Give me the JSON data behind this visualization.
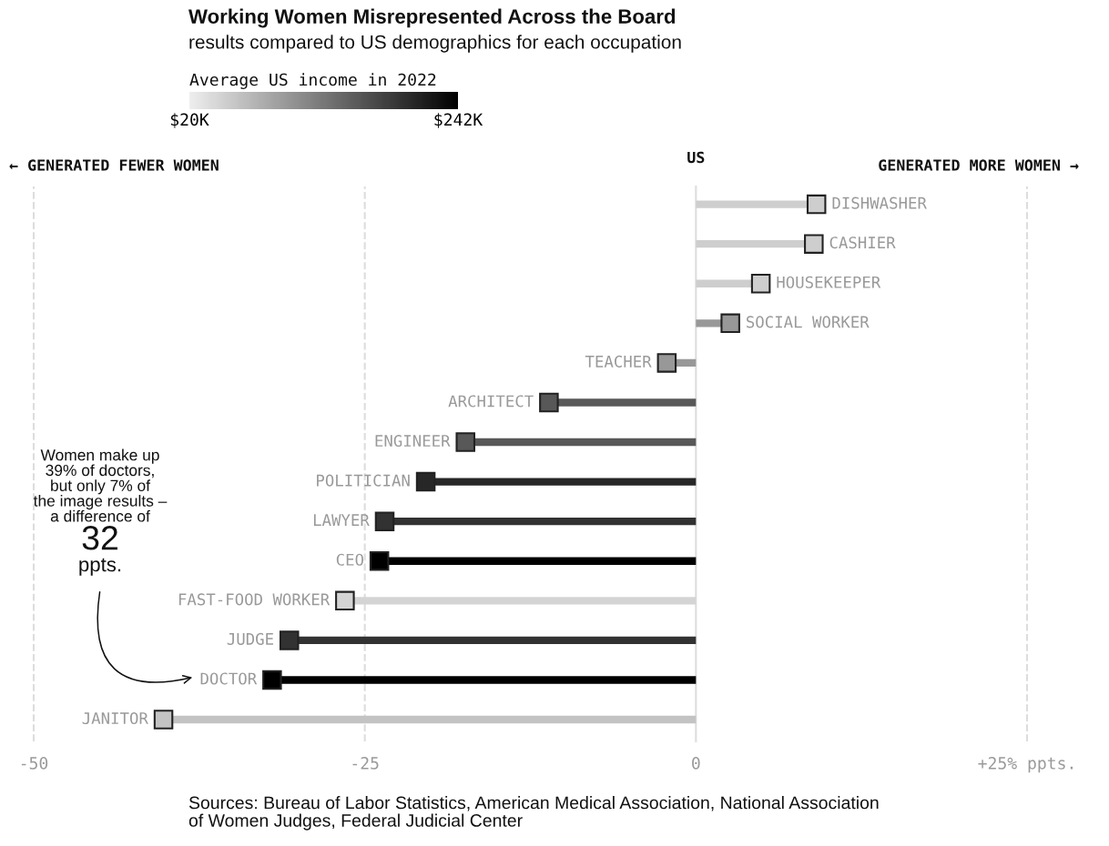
{
  "chart_data": {
    "type": "lollipop",
    "orientation": "horizontal",
    "title": "Working Women Misrepresented Across the Board",
    "subtitle": "results compared to US demographics for each occupation",
    "categories": [
      "DISHWASHER",
      "CASHIER",
      "HOUSEKEEPER",
      "SOCIAL WORKER",
      "TEACHER",
      "ARCHITECT",
      "ENGINEER",
      "POLITICIAN",
      "LAWYER",
      "CEO",
      "FAST-FOOD WORKER",
      "JUDGE",
      "DOCTOR",
      "JANITOR"
    ],
    "values": [
      9.1,
      8.9,
      4.9,
      2.6,
      -2.2,
      -11.1,
      -17.4,
      -20.4,
      -23.5,
      -23.9,
      -26.5,
      -30.7,
      -32,
      -40.2
    ],
    "cvalues": [
      50,
      50,
      50,
      100,
      100,
      160,
      160,
      205,
      195,
      242,
      45,
      195,
      242,
      60
    ],
    "clabel": "Average US income in 2022",
    "clim": [
      20,
      242
    ],
    "cticks": [
      {
        "value": 20,
        "label": "$20K"
      },
      {
        "value": 242,
        "label": "$242K"
      }
    ],
    "xlim": [
      -50,
      25
    ],
    "xticks": [
      -50,
      -25,
      0,
      {
        "value": 25,
        "label": "+25% ppts."
      }
    ],
    "marker": "square",
    "ref_lines": [
      {
        "axis": "x",
        "value": 0,
        "label": "US",
        "color": "#dddddd",
        "line_style": "solid"
      },
      {
        "axis": "x",
        "value": -50,
        "color": "#dddddd",
        "line_style": "dashed"
      },
      {
        "axis": "x",
        "value": -25,
        "color": "#dddddd",
        "line_style": "dashed"
      },
      {
        "axis": "x",
        "value": 25,
        "color": "#dddddd",
        "line_style": "dashed"
      }
    ],
    "annotations": [
      "Women make up\n39% of doctors,\nbut only 7% of\nthe image results –\na difference of",
      "32",
      "ppts.",
      "← GENERATED FEWER WOMEN",
      "GENERATED MORE WOMEN →",
      "Sources: Bureau of Labor Statistics, American Medical Association, National Association\nof Women Judges, Federal Judicial Center"
    ]
  }
}
